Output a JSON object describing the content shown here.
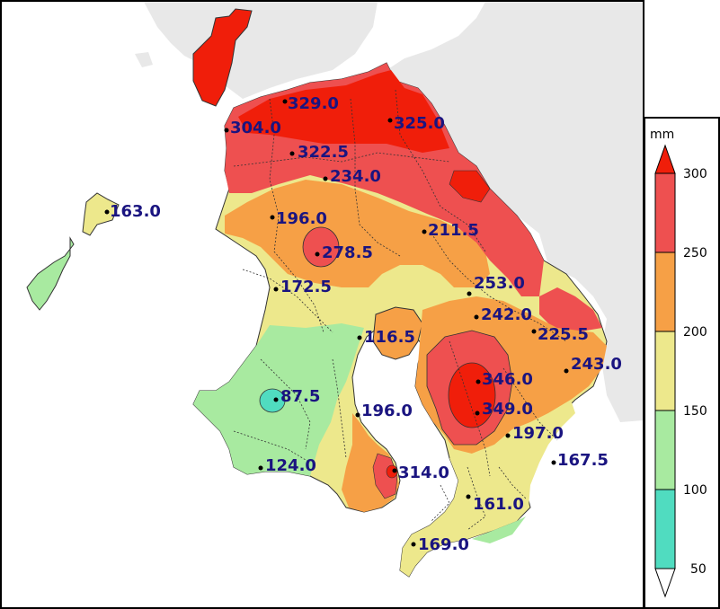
{
  "legend": {
    "unit": "mm",
    "ticks": [
      "300",
      "250",
      "200",
      "150",
      "100",
      "50"
    ],
    "classes": [
      {
        "range": "over 300",
        "color": "#f01e0a"
      },
      {
        "range": "250-300",
        "color": "#ee5050"
      },
      {
        "range": "200-250",
        "color": "#f6a046"
      },
      {
        "range": "150-200",
        "color": "#ede88c"
      },
      {
        "range": "100-150",
        "color": "#a8eaa0"
      },
      {
        "range": "50-100",
        "color": "#50dcc0"
      },
      {
        "range": "under 50",
        "color": "#ffffff"
      }
    ]
  },
  "colors": {
    "land_outside": "#e8e8e8",
    "sea": "#ffffff",
    "label_text": "#1a1480",
    "boundary": "#333333"
  },
  "stations": [
    {
      "id": "s1",
      "value": "329.0"
    },
    {
      "id": "s2",
      "value": "325.0"
    },
    {
      "id": "s3",
      "value": "304.0"
    },
    {
      "id": "s4",
      "value": "322.5"
    },
    {
      "id": "s5",
      "value": "234.0"
    },
    {
      "id": "s6",
      "value": "163.0"
    },
    {
      "id": "s7",
      "value": "196.0"
    },
    {
      "id": "s8",
      "value": "211.5"
    },
    {
      "id": "s9",
      "value": "278.5"
    },
    {
      "id": "s10",
      "value": "172.5"
    },
    {
      "id": "s11",
      "value": "253.0"
    },
    {
      "id": "s12",
      "value": "242.0"
    },
    {
      "id": "s13",
      "value": "116.5"
    },
    {
      "id": "s14",
      "value": "225.5"
    },
    {
      "id": "s15",
      "value": "243.0"
    },
    {
      "id": "s16",
      "value": "346.0"
    },
    {
      "id": "s17",
      "value": "87.5"
    },
    {
      "id": "s18",
      "value": "196.0"
    },
    {
      "id": "s19",
      "value": "349.0"
    },
    {
      "id": "s20",
      "value": "197.0"
    },
    {
      "id": "s21",
      "value": "167.5"
    },
    {
      "id": "s22",
      "value": "124.0"
    },
    {
      "id": "s23",
      "value": "314.0"
    },
    {
      "id": "s24",
      "value": "161.0"
    },
    {
      "id": "s25",
      "value": "169.0"
    }
  ]
}
